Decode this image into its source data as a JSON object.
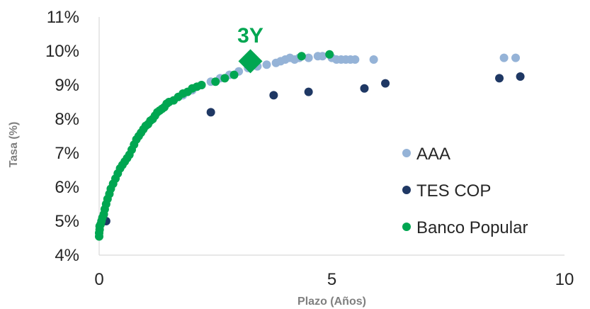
{
  "chart_data": {
    "type": "scatter",
    "xlabel": "Plazo (Años)",
    "ylabel": "Tasa (%)",
    "xlim": [
      0,
      10
    ],
    "ylim": [
      4,
      11
    ],
    "x_ticks": [
      {
        "value": 0,
        "label": "0"
      },
      {
        "value": 5,
        "label": "5"
      },
      {
        "value": 10,
        "label": "10"
      }
    ],
    "y_ticks": [
      {
        "value": 4,
        "label": "4%"
      },
      {
        "value": 5,
        "label": "5%"
      },
      {
        "value": 6,
        "label": "6%"
      },
      {
        "value": 7,
        "label": "7%"
      },
      {
        "value": 8,
        "label": "8%"
      },
      {
        "value": 9,
        "label": "9%"
      },
      {
        "value": 10,
        "label": "10%"
      },
      {
        "value": 11,
        "label": "11%"
      }
    ],
    "grid": false,
    "legend_position": "bottom-right",
    "series": [
      {
        "name": "AAA",
        "color": "#95b3d7",
        "points": [
          [
            1.5,
            8.5
          ],
          [
            1.8,
            8.7
          ],
          [
            2.0,
            8.85
          ],
          [
            2.2,
            9.0
          ],
          [
            2.4,
            9.1
          ],
          [
            2.6,
            9.2
          ],
          [
            2.8,
            9.3
          ],
          [
            3.0,
            9.4
          ],
          [
            3.2,
            9.5
          ],
          [
            3.4,
            9.55
          ],
          [
            3.6,
            9.6
          ],
          [
            3.8,
            9.65
          ],
          [
            3.9,
            9.7
          ],
          [
            4.0,
            9.75
          ],
          [
            4.1,
            9.8
          ],
          [
            4.2,
            9.75
          ],
          [
            4.3,
            9.8
          ],
          [
            4.5,
            9.8
          ],
          [
            4.7,
            9.85
          ],
          [
            4.8,
            9.85
          ],
          [
            5.0,
            9.8
          ],
          [
            5.1,
            9.75
          ],
          [
            5.2,
            9.75
          ],
          [
            5.3,
            9.75
          ],
          [
            5.4,
            9.75
          ],
          [
            5.5,
            9.75
          ],
          [
            5.9,
            9.75
          ],
          [
            8.7,
            9.8
          ],
          [
            8.95,
            9.8
          ]
        ]
      },
      {
        "name": "TES COP",
        "color": "#1f3864",
        "points": [
          [
            0.15,
            5.0
          ],
          [
            2.4,
            8.2
          ],
          [
            3.75,
            8.7
          ],
          [
            4.5,
            8.8
          ],
          [
            5.7,
            8.9
          ],
          [
            6.15,
            9.05
          ],
          [
            8.6,
            9.2
          ],
          [
            9.05,
            9.25
          ]
        ]
      },
      {
        "name": "Banco Popular",
        "color": "#00a651",
        "points": [
          [
            0.0,
            4.55
          ],
          [
            0.0,
            4.65
          ],
          [
            0.01,
            4.75
          ],
          [
            0.01,
            4.85
          ],
          [
            0.03,
            4.9
          ],
          [
            0.05,
            5.0
          ],
          [
            0.07,
            5.1
          ],
          [
            0.1,
            5.2
          ],
          [
            0.12,
            5.35
          ],
          [
            0.15,
            5.5
          ],
          [
            0.18,
            5.65
          ],
          [
            0.22,
            5.8
          ],
          [
            0.25,
            5.95
          ],
          [
            0.3,
            6.1
          ],
          [
            0.35,
            6.25
          ],
          [
            0.4,
            6.4
          ],
          [
            0.45,
            6.55
          ],
          [
            0.5,
            6.65
          ],
          [
            0.55,
            6.75
          ],
          [
            0.6,
            6.85
          ],
          [
            0.65,
            6.95
          ],
          [
            0.7,
            7.1
          ],
          [
            0.75,
            7.25
          ],
          [
            0.8,
            7.4
          ],
          [
            0.85,
            7.5
          ],
          [
            0.9,
            7.6
          ],
          [
            0.95,
            7.7
          ],
          [
            1.0,
            7.8
          ],
          [
            1.05,
            7.85
          ],
          [
            1.1,
            7.95
          ],
          [
            1.15,
            8.0
          ],
          [
            1.2,
            8.1
          ],
          [
            1.25,
            8.2
          ],
          [
            1.3,
            8.25
          ],
          [
            1.35,
            8.3
          ],
          [
            1.4,
            8.35
          ],
          [
            1.45,
            8.45
          ],
          [
            1.5,
            8.5
          ],
          [
            1.6,
            8.55
          ],
          [
            1.7,
            8.65
          ],
          [
            1.8,
            8.75
          ],
          [
            1.9,
            8.8
          ],
          [
            2.0,
            8.9
          ],
          [
            2.1,
            8.95
          ],
          [
            2.2,
            9.0
          ],
          [
            2.5,
            9.1
          ],
          [
            2.7,
            9.2
          ],
          [
            2.9,
            9.3
          ],
          [
            4.35,
            9.85
          ],
          [
            4.95,
            9.9
          ]
        ]
      },
      {
        "name": "",
        "color": "#00a651",
        "marker": "diamond",
        "points": [
          [
            3.25,
            9.7
          ]
        ]
      }
    ],
    "annotations": [
      {
        "text": "3Y",
        "x": 3.25,
        "y": 10.5,
        "color": "#00a651"
      }
    ]
  }
}
